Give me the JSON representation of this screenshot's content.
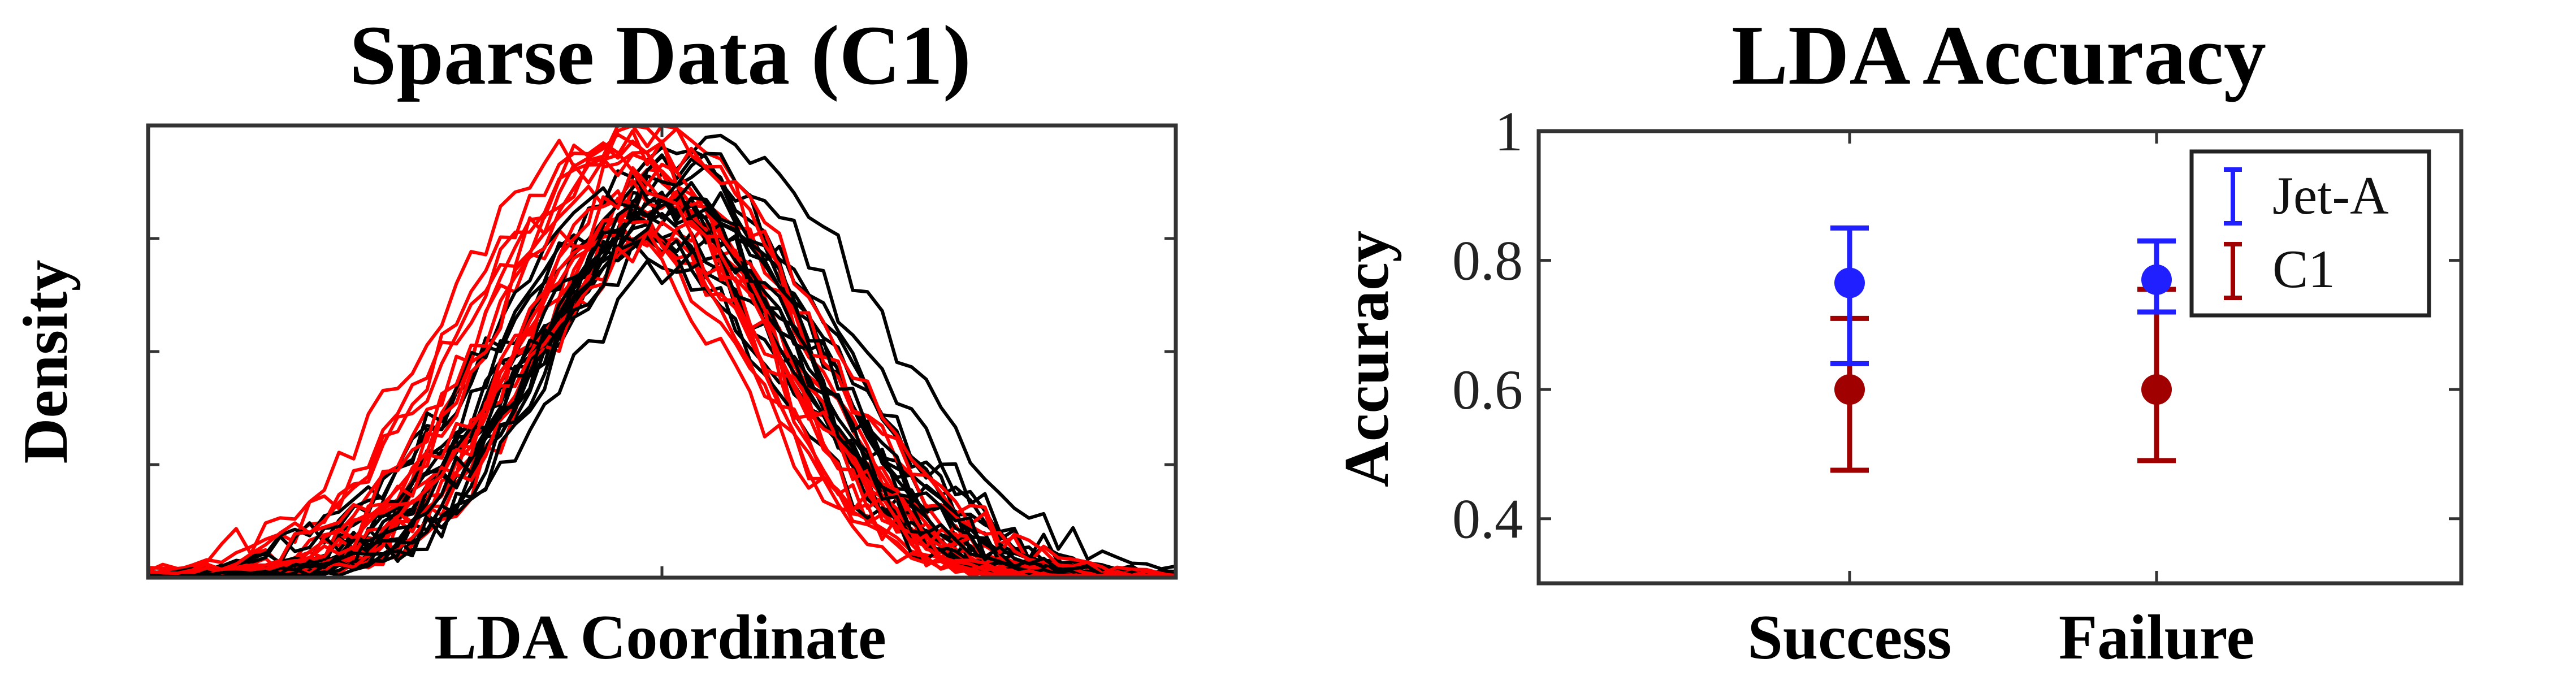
{
  "chart_data": [
    {
      "type": "line",
      "title": "Sparse Data (C1)",
      "xlabel": "LDA Coordinate",
      "ylabel": "Density",
      "xlim": [
        -1,
        1
      ],
      "ylim": [
        0,
        1
      ],
      "grid": false,
      "legend": "none",
      "series_colors": [
        "#000000",
        "#ff0000"
      ],
      "curves_per_color": 20
    },
    {
      "type": "scatter",
      "title": "LDA Accuracy",
      "xlabel": "",
      "ylabel": "Accuracy",
      "categories": [
        "Success",
        "Failure"
      ],
      "ylim": [
        0.3,
        1.0
      ],
      "yticks": [
        "0.4",
        "0.6",
        "0.8",
        "1"
      ],
      "grid": false,
      "legend_position": "top-right",
      "series": [
        {
          "name": "Jet-A",
          "color": "#1f1fff",
          "values": [
            0.765,
            0.77
          ],
          "err_low": [
            0.64,
            0.72
          ],
          "err_high": [
            0.85,
            0.83
          ]
        },
        {
          "name": "C1",
          "color": "#a00000",
          "values": [
            0.6,
            0.6
          ],
          "err_low": [
            0.475,
            0.49
          ],
          "err_high": [
            0.71,
            0.755
          ]
        }
      ]
    }
  ]
}
